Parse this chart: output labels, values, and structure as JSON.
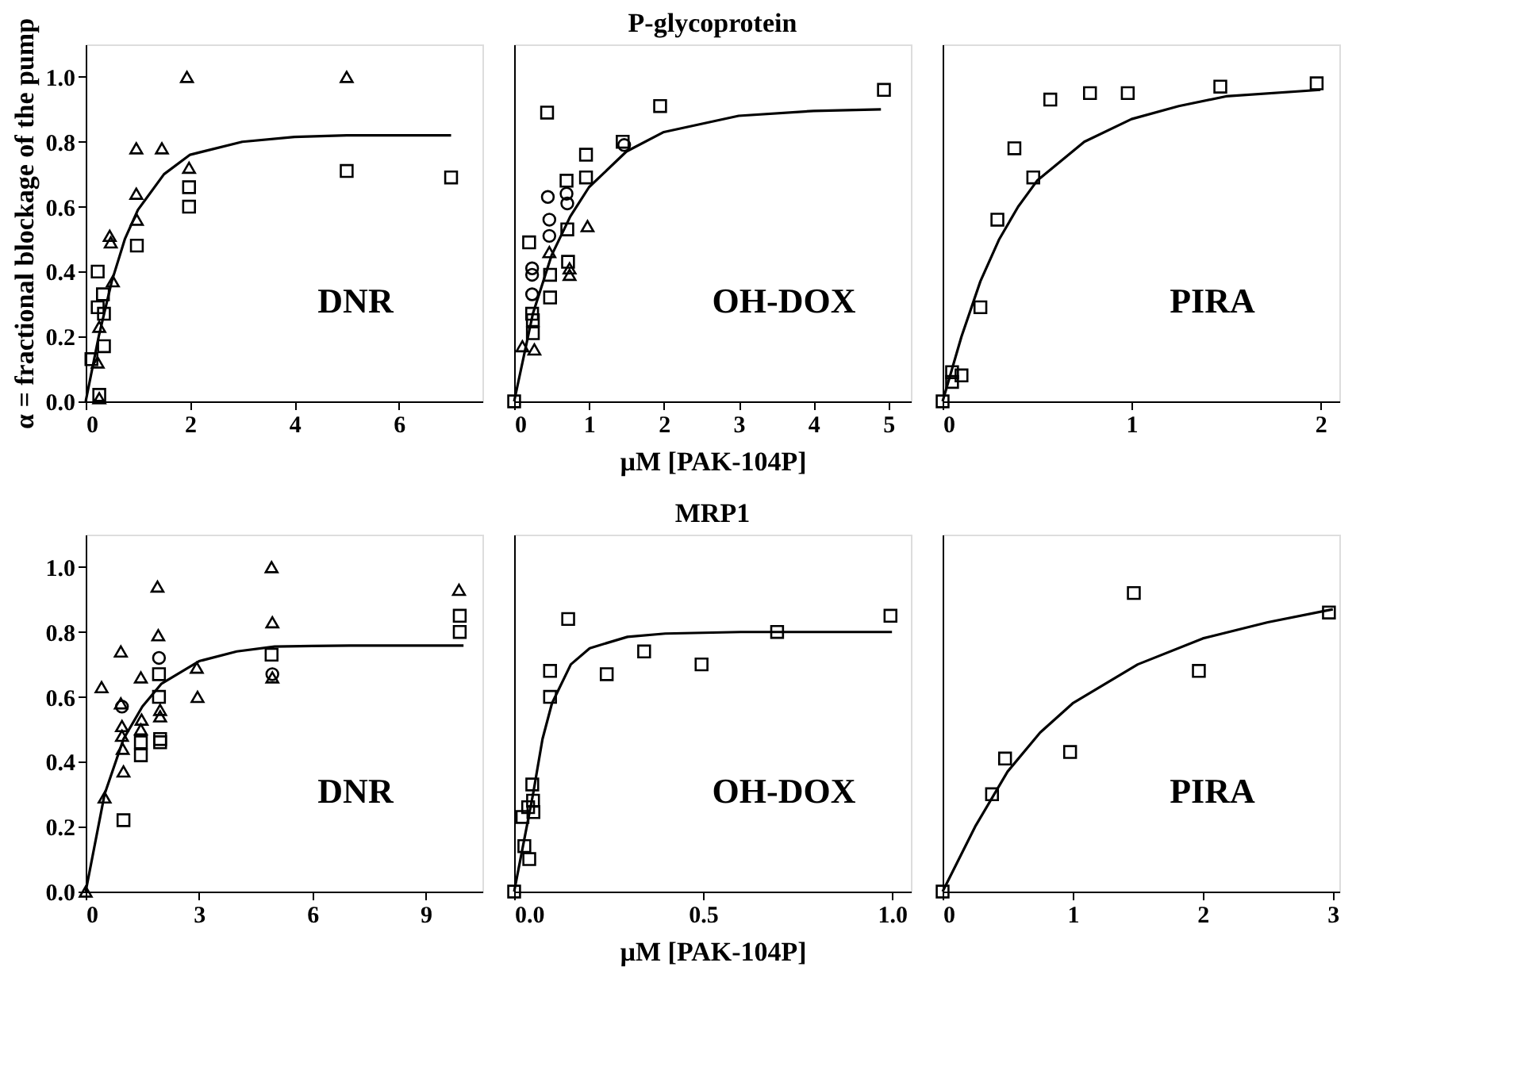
{
  "chart_data": [
    {
      "type": "scatter",
      "ylabel": "α = fractional blockage of the pump",
      "annotations": [
        "DNR"
      ],
      "xlim": [
        0,
        7.6
      ],
      "xticks": [
        0,
        2,
        4,
        6
      ],
      "ylim": [
        0,
        1.1
      ],
      "yticks": [
        {
          "value": 0,
          "label": "0.0"
        },
        {
          "value": 0.2,
          "label": "0.2"
        },
        {
          "value": 0.4,
          "label": "0.4"
        },
        {
          "value": 0.6,
          "label": "0.6"
        },
        {
          "value": 0.8,
          "label": "0.8"
        },
        {
          "value": 1,
          "label": "1.0"
        }
      ],
      "series": [
        {
          "type": "scatter",
          "marker": "square",
          "color": "#000000",
          "x": [
            0.11,
            0.23,
            0.23,
            0.33,
            0.35,
            0.35,
            0.26,
            0.98,
            1.98,
            1.98,
            5.0,
            7.0
          ],
          "values": [
            0.13,
            0.4,
            0.29,
            0.33,
            0.27,
            0.17,
            0.02,
            0.48,
            0.66,
            0.6,
            0.71,
            0.69
          ]
        },
        {
          "type": "scatter",
          "marker": "triangle",
          "color": "#000000",
          "x": [
            0.23,
            0.26,
            0.46,
            0.48,
            0.97,
            0.98,
            1.46,
            1.94,
            5.0
          ],
          "values": [
            0.12,
            0.23,
            0.51,
            0.49,
            0.78,
            0.56,
            0.78,
            1.0,
            1.0
          ]
        },
        {
          "type": "scatter",
          "marker": "triangle",
          "color": "#000000",
          "x": [
            0.26,
            0.52,
            0.97,
            1.98
          ],
          "values": [
            0.01,
            0.37,
            0.64,
            0.72
          ]
        },
        {
          "type": "line",
          "line_style": "solid",
          "color": "#000000",
          "x": [
            0,
            0.25,
            0.5,
            0.75,
            1,
            1.5,
            2,
            3,
            4,
            5,
            6,
            7
          ],
          "values": [
            0,
            0.2,
            0.37,
            0.5,
            0.59,
            0.7,
            0.76,
            0.8,
            0.815,
            0.82,
            0.82,
            0.82
          ]
        }
      ]
    },
    {
      "type": "scatter",
      "title": "P-glycoprotein",
      "xlabel": "µM [PAK-104P]",
      "annotations": [
        "OH-DOX"
      ],
      "xlim": [
        0,
        5.3
      ],
      "xticks": [
        0,
        1,
        2,
        3,
        4,
        5
      ],
      "ylim": [
        0,
        1.1
      ],
      "tick_labels": "x",
      "series": [
        {
          "type": "scatter",
          "marker": "square",
          "color": "#000000",
          "x": [
            0.2,
            0.24,
            0.25,
            0.25,
            0.44,
            0.48,
            0.48,
            0.7,
            0.71,
            0.72,
            0.96,
            0.96,
            1.45,
            1.95,
            4.94
          ],
          "values": [
            0.49,
            0.27,
            0.25,
            0.21,
            0.89,
            0.39,
            0.32,
            0.68,
            0.53,
            0.43,
            0.76,
            0.69,
            0.8,
            0.91,
            0.96
          ]
        },
        {
          "type": "scatter",
          "marker": "circle",
          "color": "#000000",
          "x": [
            0.24,
            0.24,
            0.24,
            0.45,
            0.47,
            0.47,
            0.7,
            0.71,
            1.47
          ],
          "values": [
            0.39,
            0.33,
            0.41,
            0.63,
            0.56,
            0.51,
            0.64,
            0.61,
            0.79
          ]
        },
        {
          "type": "scatter",
          "marker": "triangle",
          "color": "#000000",
          "x": [
            0.11,
            0.27,
            0.47,
            0.74,
            0.74,
            0.98
          ],
          "values": [
            0.17,
            0.16,
            0.46,
            0.41,
            0.39,
            0.54
          ]
        },
        {
          "type": "scatter",
          "marker": "square",
          "color": "#000000",
          "x": [
            0
          ],
          "values": [
            0
          ]
        },
        {
          "type": "line",
          "line_style": "solid",
          "color": "#000000",
          "x": [
            0,
            0.25,
            0.5,
            0.75,
            1,
            1.5,
            2,
            3,
            4,
            4.9
          ],
          "values": [
            0,
            0.27,
            0.45,
            0.57,
            0.66,
            0.77,
            0.83,
            0.88,
            0.895,
            0.9
          ]
        }
      ]
    },
    {
      "type": "scatter",
      "annotations": [
        "PIRA"
      ],
      "xlim": [
        0,
        2.1
      ],
      "xticks": [
        0,
        1,
        2
      ],
      "ylim": [
        0,
        1.1
      ],
      "tick_labels": "x",
      "series": [
        {
          "type": "scatter",
          "marker": "square",
          "color": "#000000",
          "x": [
            0,
            0.05,
            0.05,
            0.1,
            0.2,
            0.29,
            0.38,
            0.48,
            0.57,
            0.78,
            0.98,
            1.47,
            1.98
          ],
          "values": [
            0,
            0.09,
            0.06,
            0.08,
            0.29,
            0.56,
            0.78,
            0.69,
            0.93,
            0.95,
            0.95,
            0.97,
            0.98
          ]
        },
        {
          "type": "line",
          "line_style": "solid",
          "color": "#000000",
          "x": [
            0,
            0.1,
            0.2,
            0.3,
            0.4,
            0.5,
            0.75,
            1,
            1.25,
            1.5,
            2
          ],
          "values": [
            0,
            0.2,
            0.37,
            0.5,
            0.6,
            0.68,
            0.8,
            0.87,
            0.91,
            0.94,
            0.96
          ]
        }
      ]
    },
    {
      "type": "scatter",
      "annotations": [
        "DNR"
      ],
      "xlim": [
        0,
        10.5
      ],
      "xticks": [
        0,
        3,
        6,
        9
      ],
      "ylim": [
        0,
        1.1
      ],
      "yticks": [
        {
          "value": 0,
          "label": "0.0"
        },
        {
          "value": 0.2,
          "label": "0.2"
        },
        {
          "value": 0.4,
          "label": "0.4"
        },
        {
          "value": 0.6,
          "label": "0.6"
        },
        {
          "value": 0.8,
          "label": "0.8"
        },
        {
          "value": 1,
          "label": "1.0"
        }
      ],
      "series": [
        {
          "type": "scatter",
          "marker": "triangle",
          "color": "#000000",
          "x": [
            0,
            0.42,
            0.5,
            0.93,
            0.93,
            0.96,
            0.96,
            0.98,
            1.46,
            1.48,
            1.9,
            1.92,
            1.97,
            2.94,
            4.92,
            9.88
          ],
          "values": [
            0,
            0.63,
            0.29,
            0.74,
            0.58,
            0.51,
            0.48,
            0.44,
            0.66,
            0.53,
            0.94,
            0.79,
            0.56,
            0.69,
            1.0,
            0.93
          ]
        },
        {
          "type": "scatter",
          "marker": "square",
          "color": "#000000",
          "x": [
            1.0,
            1.46,
            1.46,
            1.94,
            1.94,
            1.97,
            1.97,
            4.92,
            9.9,
            9.9
          ],
          "values": [
            0.22,
            0.46,
            0.42,
            0.67,
            0.6,
            0.47,
            0.46,
            0.73,
            0.85,
            0.8
          ]
        },
        {
          "type": "scatter",
          "marker": "triangle",
          "color": "#000000",
          "x": [
            1.0,
            1.46,
            1.97,
            2.96,
            4.94,
            4.94
          ],
          "values": [
            0.37,
            0.5,
            0.54,
            0.6,
            0.83,
            0.66
          ]
        },
        {
          "type": "scatter",
          "marker": "circle",
          "color": "#000000",
          "x": [
            0.96,
            1.94,
            4.94
          ],
          "values": [
            0.57,
            0.72,
            0.67
          ]
        },
        {
          "type": "line",
          "line_style": "solid",
          "color": "#000000",
          "x": [
            0,
            0.5,
            1,
            1.5,
            2,
            3,
            4,
            5,
            6,
            7,
            9,
            10
          ],
          "values": [
            0,
            0.3,
            0.47,
            0.57,
            0.64,
            0.71,
            0.74,
            0.755,
            0.757,
            0.758,
            0.758,
            0.758
          ]
        }
      ]
    },
    {
      "type": "scatter",
      "title": "MRP1",
      "xlabel": "µM [PAK-104P]",
      "annotations": [
        "OH-DOX"
      ],
      "xlim": [
        0,
        1.05
      ],
      "xticks": [
        {
          "value": 0,
          "label": "0.0"
        },
        {
          "value": 0.5,
          "label": "0.5"
        },
        {
          "value": 1,
          "label": "1.0"
        }
      ],
      "ylim": [
        0,
        1.1
      ],
      "tick_labels": "x",
      "series": [
        {
          "type": "scatter",
          "marker": "square",
          "color": "#000000",
          "x": [
            0.022,
            0.04,
            0.048,
            0.05,
            0.095,
            0.245,
            0.344,
            0.496,
            0.696,
            0.996
          ],
          "values": [
            0.23,
            0.1,
            0.33,
            0.28,
            0.6,
            0.67,
            0.74,
            0.7,
            0.8,
            0.85
          ]
        },
        {
          "type": "scatter",
          "marker": "square",
          "color": "#000000",
          "x": [
            0,
            0.027,
            0.037,
            0.051,
            0.095,
            0.143
          ],
          "values": [
            0,
            0.14,
            0.26,
            0.245,
            0.68,
            0.84
          ]
        },
        {
          "type": "line",
          "line_style": "solid",
          "color": "#000000",
          "x": [
            0,
            0.025,
            0.05,
            0.075,
            0.1,
            0.15,
            0.2,
            0.3,
            0.4,
            0.6,
            1.0
          ],
          "values": [
            0,
            0.15,
            0.3,
            0.47,
            0.58,
            0.7,
            0.75,
            0.785,
            0.795,
            0.8,
            0.8
          ]
        }
      ]
    },
    {
      "type": "scatter",
      "annotations": [
        "PIRA"
      ],
      "xlim": [
        0,
        3.05
      ],
      "xticks": [
        0,
        1,
        2,
        3
      ],
      "ylim": [
        0,
        1.1
      ],
      "tick_labels": "x",
      "series": [
        {
          "type": "scatter",
          "marker": "square",
          "color": "#000000",
          "x": [
            0,
            0.38,
            0.48,
            0.98,
            1.47,
            1.97,
            2.97
          ],
          "values": [
            0,
            0.3,
            0.41,
            0.43,
            0.92,
            0.68,
            0.86
          ]
        },
        {
          "type": "line",
          "line_style": "solid",
          "color": "#000000",
          "x": [
            0,
            0.25,
            0.5,
            0.75,
            1,
            1.5,
            2,
            2.5,
            3
          ],
          "values": [
            0,
            0.2,
            0.37,
            0.49,
            0.58,
            0.7,
            0.78,
            0.83,
            0.87
          ]
        }
      ]
    }
  ]
}
